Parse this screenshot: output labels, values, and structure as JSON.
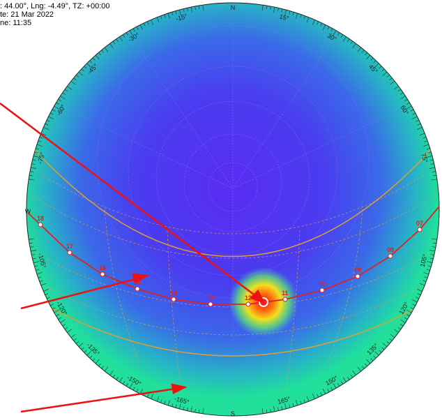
{
  "header": {
    "lines": [
      ": 44.00°, Lng: -4.49°, TZ: +00:00",
      "te: 21 Mar 2022",
      "ne: 11:35"
    ]
  },
  "compass": {
    "north": "N",
    "south": "S",
    "west": "W"
  },
  "azimuth_labels": [
    {
      "angle": -15,
      "label": "-15°"
    },
    {
      "angle": 15,
      "label": "15°"
    },
    {
      "angle": -30,
      "label": "-30°"
    },
    {
      "angle": 30,
      "label": "30°"
    },
    {
      "angle": -45,
      "label": "-45°"
    },
    {
      "angle": 45,
      "label": "45°"
    },
    {
      "angle": -60,
      "label": "-60°"
    },
    {
      "angle": 60,
      "label": "60°"
    },
    {
      "angle": -75,
      "label": "-75°"
    },
    {
      "angle": 75,
      "label": "75°"
    },
    {
      "angle": -105,
      "label": "-105°"
    },
    {
      "angle": 105,
      "label": "105°"
    },
    {
      "angle": -120,
      "label": "-120°"
    },
    {
      "angle": 120,
      "label": "120°"
    },
    {
      "angle": -135,
      "label": "-135°"
    },
    {
      "angle": 135,
      "label": "135°"
    },
    {
      "angle": -150,
      "label": "-150°"
    },
    {
      "angle": 150,
      "label": "150°"
    },
    {
      "angle": -165,
      "label": "-165°"
    },
    {
      "angle": 165,
      "label": "165°"
    }
  ],
  "hours": [
    "18",
    "17",
    "16",
    "15",
    "14",
    "13",
    "12",
    "11",
    "10",
    "09",
    "08",
    "07"
  ]
}
